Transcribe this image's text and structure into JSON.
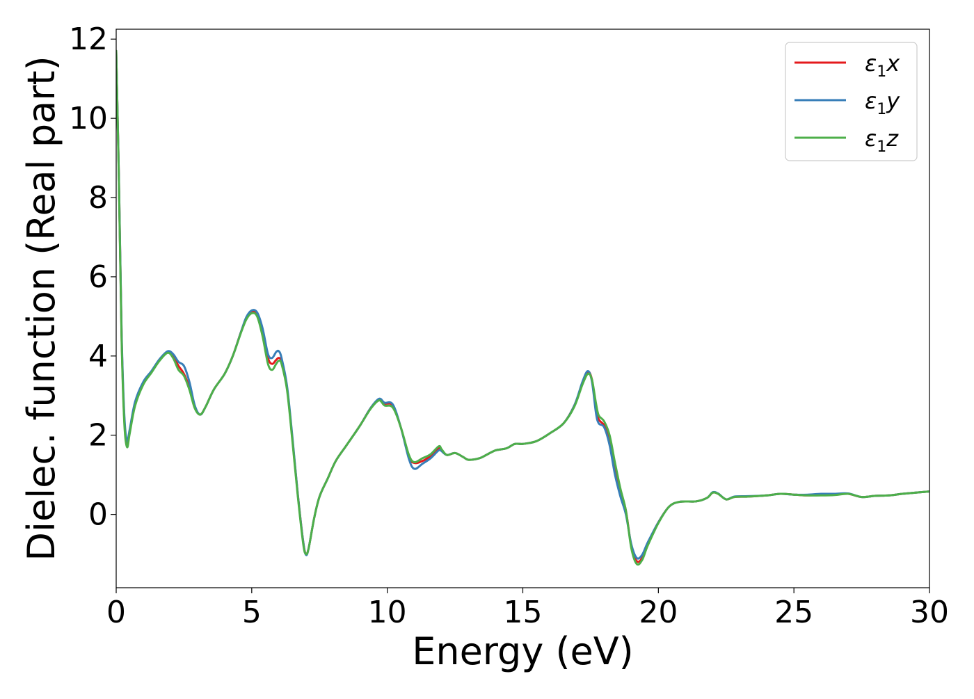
{
  "chart_data": {
    "type": "line",
    "title": "",
    "xlabel": "Energy (eV)",
    "ylabel": "Dielec. function (Real part)",
    "xlim": [
      0,
      30
    ],
    "ylim": [
      -1.85,
      12.25
    ],
    "xticks": [
      0,
      5,
      10,
      15,
      20,
      25,
      30
    ],
    "yticks": [
      0,
      2,
      4,
      6,
      8,
      10,
      12
    ],
    "xtick_labels": [
      "0",
      "5",
      "10",
      "15",
      "20",
      "25",
      "30"
    ],
    "ytick_labels": [
      "0",
      "2",
      "4",
      "6",
      "8",
      "10",
      "12"
    ],
    "grid": false,
    "legend_position": "top-right",
    "series": [
      {
        "name": "ε₁x",
        "legend_base": "ε",
        "legend_sub": "1",
        "legend_axis": "x",
        "color": "#e41a1c",
        "points": [
          [
            0.0,
            11.7
          ],
          [
            0.1,
            8.5
          ],
          [
            0.2,
            4.5
          ],
          [
            0.3,
            2.4
          ],
          [
            0.4,
            1.75
          ],
          [
            0.5,
            2.1
          ],
          [
            0.7,
            2.8
          ],
          [
            1.0,
            3.3
          ],
          [
            1.3,
            3.6
          ],
          [
            1.6,
            3.9
          ],
          [
            1.9,
            4.1
          ],
          [
            2.1,
            4.0
          ],
          [
            2.3,
            3.75
          ],
          [
            2.5,
            3.55
          ],
          [
            2.7,
            3.2
          ],
          [
            2.9,
            2.7
          ],
          [
            3.1,
            2.52
          ],
          [
            3.3,
            2.72
          ],
          [
            3.6,
            3.15
          ],
          [
            4.0,
            3.55
          ],
          [
            4.3,
            4.0
          ],
          [
            4.6,
            4.6
          ],
          [
            4.8,
            4.95
          ],
          [
            5.0,
            5.12
          ],
          [
            5.2,
            5.05
          ],
          [
            5.4,
            4.6
          ],
          [
            5.6,
            3.95
          ],
          [
            5.75,
            3.8
          ],
          [
            5.9,
            3.9
          ],
          [
            6.0,
            3.95
          ],
          [
            6.1,
            3.85
          ],
          [
            6.3,
            3.2
          ],
          [
            6.5,
            1.9
          ],
          [
            6.7,
            0.5
          ],
          [
            6.9,
            -0.7
          ],
          [
            7.0,
            -1.0
          ],
          [
            7.1,
            -0.85
          ],
          [
            7.3,
            -0.1
          ],
          [
            7.5,
            0.45
          ],
          [
            7.8,
            0.9
          ],
          [
            8.1,
            1.35
          ],
          [
            8.5,
            1.75
          ],
          [
            9.0,
            2.25
          ],
          [
            9.4,
            2.7
          ],
          [
            9.7,
            2.9
          ],
          [
            9.9,
            2.8
          ],
          [
            10.2,
            2.75
          ],
          [
            10.5,
            2.2
          ],
          [
            10.8,
            1.45
          ],
          [
            11.0,
            1.3
          ],
          [
            11.3,
            1.35
          ],
          [
            11.6,
            1.48
          ],
          [
            11.9,
            1.68
          ],
          [
            12.0,
            1.62
          ],
          [
            12.2,
            1.5
          ],
          [
            12.5,
            1.55
          ],
          [
            12.8,
            1.45
          ],
          [
            13.0,
            1.38
          ],
          [
            13.4,
            1.42
          ],
          [
            13.7,
            1.52
          ],
          [
            14.0,
            1.62
          ],
          [
            14.4,
            1.67
          ],
          [
            14.7,
            1.78
          ],
          [
            15.0,
            1.78
          ],
          [
            15.5,
            1.85
          ],
          [
            16.0,
            2.05
          ],
          [
            16.5,
            2.3
          ],
          [
            16.9,
            2.75
          ],
          [
            17.2,
            3.3
          ],
          [
            17.4,
            3.6
          ],
          [
            17.55,
            3.4
          ],
          [
            17.7,
            2.7
          ],
          [
            17.8,
            2.4
          ],
          [
            18.0,
            2.25
          ],
          [
            18.2,
            1.9
          ],
          [
            18.4,
            1.2
          ],
          [
            18.6,
            0.6
          ],
          [
            18.8,
            0.1
          ],
          [
            19.0,
            -0.8
          ],
          [
            19.2,
            -1.18
          ],
          [
            19.4,
            -1.1
          ],
          [
            19.6,
            -0.75
          ],
          [
            20.0,
            -0.2
          ],
          [
            20.4,
            0.2
          ],
          [
            20.8,
            0.32
          ],
          [
            21.4,
            0.33
          ],
          [
            21.8,
            0.42
          ],
          [
            22.0,
            0.55
          ],
          [
            22.2,
            0.52
          ],
          [
            22.5,
            0.38
          ],
          [
            22.8,
            0.44
          ],
          [
            23.3,
            0.45
          ],
          [
            24.0,
            0.48
          ],
          [
            24.5,
            0.52
          ],
          [
            25.0,
            0.5
          ],
          [
            25.5,
            0.48
          ],
          [
            26.0,
            0.5
          ],
          [
            26.5,
            0.5
          ],
          [
            27.0,
            0.52
          ],
          [
            27.5,
            0.44
          ],
          [
            28.0,
            0.47
          ],
          [
            28.5,
            0.48
          ],
          [
            29.0,
            0.52
          ],
          [
            29.5,
            0.55
          ],
          [
            30.0,
            0.58
          ]
        ]
      },
      {
        "name": "ε₁y",
        "legend_base": "ε",
        "legend_sub": "1",
        "legend_axis": "y",
        "color": "#377eb8",
        "points": [
          [
            0.0,
            11.7
          ],
          [
            0.1,
            8.5
          ],
          [
            0.2,
            4.6
          ],
          [
            0.3,
            2.5
          ],
          [
            0.4,
            1.85
          ],
          [
            0.5,
            2.15
          ],
          [
            0.7,
            2.85
          ],
          [
            1.0,
            3.35
          ],
          [
            1.3,
            3.62
          ],
          [
            1.6,
            3.92
          ],
          [
            1.9,
            4.12
          ],
          [
            2.1,
            4.05
          ],
          [
            2.3,
            3.85
          ],
          [
            2.5,
            3.75
          ],
          [
            2.7,
            3.35
          ],
          [
            2.9,
            2.75
          ],
          [
            3.1,
            2.52
          ],
          [
            3.3,
            2.72
          ],
          [
            3.6,
            3.15
          ],
          [
            4.0,
            3.55
          ],
          [
            4.3,
            4.0
          ],
          [
            4.6,
            4.6
          ],
          [
            4.8,
            4.98
          ],
          [
            5.0,
            5.15
          ],
          [
            5.2,
            5.1
          ],
          [
            5.4,
            4.7
          ],
          [
            5.6,
            4.05
          ],
          [
            5.75,
            3.95
          ],
          [
            5.9,
            4.1
          ],
          [
            6.0,
            4.12
          ],
          [
            6.1,
            3.95
          ],
          [
            6.3,
            3.25
          ],
          [
            6.5,
            1.95
          ],
          [
            6.7,
            0.5
          ],
          [
            6.9,
            -0.7
          ],
          [
            7.0,
            -1.02
          ],
          [
            7.1,
            -0.85
          ],
          [
            7.3,
            -0.1
          ],
          [
            7.5,
            0.45
          ],
          [
            7.8,
            0.9
          ],
          [
            8.1,
            1.35
          ],
          [
            8.5,
            1.75
          ],
          [
            9.0,
            2.25
          ],
          [
            9.4,
            2.7
          ],
          [
            9.7,
            2.92
          ],
          [
            9.9,
            2.82
          ],
          [
            10.2,
            2.78
          ],
          [
            10.5,
            2.2
          ],
          [
            10.8,
            1.4
          ],
          [
            11.0,
            1.15
          ],
          [
            11.3,
            1.28
          ],
          [
            11.6,
            1.42
          ],
          [
            11.9,
            1.62
          ],
          [
            12.0,
            1.6
          ],
          [
            12.2,
            1.5
          ],
          [
            12.5,
            1.55
          ],
          [
            12.8,
            1.45
          ],
          [
            13.0,
            1.38
          ],
          [
            13.4,
            1.42
          ],
          [
            13.7,
            1.52
          ],
          [
            14.0,
            1.62
          ],
          [
            14.4,
            1.67
          ],
          [
            14.7,
            1.78
          ],
          [
            15.0,
            1.78
          ],
          [
            15.5,
            1.85
          ],
          [
            16.0,
            2.05
          ],
          [
            16.5,
            2.3
          ],
          [
            16.9,
            2.75
          ],
          [
            17.2,
            3.35
          ],
          [
            17.4,
            3.62
          ],
          [
            17.55,
            3.35
          ],
          [
            17.7,
            2.55
          ],
          [
            17.8,
            2.3
          ],
          [
            18.0,
            2.2
          ],
          [
            18.2,
            1.75
          ],
          [
            18.4,
            1.0
          ],
          [
            18.6,
            0.45
          ],
          [
            18.8,
            0.0
          ],
          [
            19.0,
            -0.75
          ],
          [
            19.2,
            -1.1
          ],
          [
            19.4,
            -1.02
          ],
          [
            19.6,
            -0.72
          ],
          [
            20.0,
            -0.2
          ],
          [
            20.4,
            0.2
          ],
          [
            20.8,
            0.32
          ],
          [
            21.4,
            0.33
          ],
          [
            21.8,
            0.42
          ],
          [
            22.0,
            0.56
          ],
          [
            22.2,
            0.53
          ],
          [
            22.5,
            0.38
          ],
          [
            22.8,
            0.45
          ],
          [
            23.3,
            0.46
          ],
          [
            24.0,
            0.48
          ],
          [
            24.5,
            0.52
          ],
          [
            25.0,
            0.5
          ],
          [
            25.5,
            0.5
          ],
          [
            26.0,
            0.52
          ],
          [
            26.5,
            0.52
          ],
          [
            27.0,
            0.53
          ],
          [
            27.5,
            0.44
          ],
          [
            28.0,
            0.47
          ],
          [
            28.5,
            0.48
          ],
          [
            29.0,
            0.52
          ],
          [
            29.5,
            0.55
          ],
          [
            30.0,
            0.58
          ]
        ]
      },
      {
        "name": "ε₁z",
        "legend_base": "ε",
        "legend_sub": "1",
        "legend_axis": "z",
        "color": "#4daf4a",
        "points": [
          [
            0.0,
            11.7
          ],
          [
            0.1,
            8.4
          ],
          [
            0.2,
            4.4
          ],
          [
            0.3,
            2.3
          ],
          [
            0.4,
            1.7
          ],
          [
            0.5,
            2.05
          ],
          [
            0.7,
            2.75
          ],
          [
            1.0,
            3.28
          ],
          [
            1.3,
            3.58
          ],
          [
            1.6,
            3.88
          ],
          [
            1.9,
            4.08
          ],
          [
            2.1,
            3.95
          ],
          [
            2.3,
            3.65
          ],
          [
            2.5,
            3.5
          ],
          [
            2.7,
            3.15
          ],
          [
            2.9,
            2.68
          ],
          [
            3.1,
            2.52
          ],
          [
            3.3,
            2.72
          ],
          [
            3.6,
            3.15
          ],
          [
            4.0,
            3.55
          ],
          [
            4.3,
            4.0
          ],
          [
            4.6,
            4.58
          ],
          [
            4.8,
            4.92
          ],
          [
            5.0,
            5.08
          ],
          [
            5.2,
            5.0
          ],
          [
            5.4,
            4.5
          ],
          [
            5.6,
            3.8
          ],
          [
            5.75,
            3.65
          ],
          [
            5.9,
            3.8
          ],
          [
            6.0,
            3.88
          ],
          [
            6.1,
            3.8
          ],
          [
            6.3,
            3.15
          ],
          [
            6.5,
            1.85
          ],
          [
            6.7,
            0.45
          ],
          [
            6.9,
            -0.75
          ],
          [
            7.0,
            -1.0
          ],
          [
            7.1,
            -0.85
          ],
          [
            7.3,
            -0.1
          ],
          [
            7.5,
            0.45
          ],
          [
            7.8,
            0.9
          ],
          [
            8.1,
            1.35
          ],
          [
            8.5,
            1.75
          ],
          [
            9.0,
            2.25
          ],
          [
            9.4,
            2.68
          ],
          [
            9.7,
            2.88
          ],
          [
            9.9,
            2.75
          ],
          [
            10.2,
            2.7
          ],
          [
            10.5,
            2.2
          ],
          [
            10.8,
            1.5
          ],
          [
            11.0,
            1.32
          ],
          [
            11.3,
            1.42
          ],
          [
            11.6,
            1.52
          ],
          [
            11.9,
            1.72
          ],
          [
            12.0,
            1.65
          ],
          [
            12.2,
            1.5
          ],
          [
            12.5,
            1.55
          ],
          [
            12.8,
            1.45
          ],
          [
            13.0,
            1.38
          ],
          [
            13.4,
            1.42
          ],
          [
            13.7,
            1.52
          ],
          [
            14.0,
            1.62
          ],
          [
            14.4,
            1.67
          ],
          [
            14.7,
            1.78
          ],
          [
            15.0,
            1.78
          ],
          [
            15.5,
            1.85
          ],
          [
            16.0,
            2.05
          ],
          [
            16.5,
            2.3
          ],
          [
            16.9,
            2.72
          ],
          [
            17.2,
            3.28
          ],
          [
            17.4,
            3.55
          ],
          [
            17.55,
            3.4
          ],
          [
            17.7,
            2.8
          ],
          [
            17.8,
            2.5
          ],
          [
            18.0,
            2.35
          ],
          [
            18.2,
            2.0
          ],
          [
            18.4,
            1.3
          ],
          [
            18.6,
            0.65
          ],
          [
            18.8,
            0.1
          ],
          [
            19.0,
            -0.85
          ],
          [
            19.2,
            -1.25
          ],
          [
            19.4,
            -1.15
          ],
          [
            19.6,
            -0.8
          ],
          [
            20.0,
            -0.22
          ],
          [
            20.4,
            0.2
          ],
          [
            20.8,
            0.32
          ],
          [
            21.4,
            0.33
          ],
          [
            21.8,
            0.42
          ],
          [
            22.0,
            0.55
          ],
          [
            22.2,
            0.52
          ],
          [
            22.5,
            0.38
          ],
          [
            22.8,
            0.44
          ],
          [
            23.3,
            0.45
          ],
          [
            24.0,
            0.48
          ],
          [
            24.5,
            0.52
          ],
          [
            25.0,
            0.5
          ],
          [
            25.5,
            0.48
          ],
          [
            26.0,
            0.48
          ],
          [
            26.5,
            0.49
          ],
          [
            27.0,
            0.52
          ],
          [
            27.5,
            0.44
          ],
          [
            28.0,
            0.47
          ],
          [
            28.5,
            0.48
          ],
          [
            29.0,
            0.52
          ],
          [
            29.5,
            0.55
          ],
          [
            30.0,
            0.58
          ]
        ]
      }
    ]
  }
}
